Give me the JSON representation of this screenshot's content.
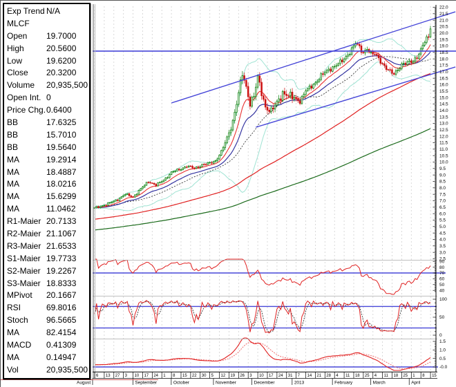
{
  "data_window": {
    "rows": [
      {
        "label": "Exp Trend",
        "value": "N/A"
      },
      {
        "label": "MLCF",
        "value": ""
      },
      {
        "label": "Open",
        "value": "19.7000"
      },
      {
        "label": "High",
        "value": "20.5600"
      },
      {
        "label": "Low",
        "value": "19.6200"
      },
      {
        "label": "Close",
        "value": "20.3200"
      },
      {
        "label": "Volume",
        "value": "20,935,500"
      },
      {
        "label": "Open Int.",
        "value": "0"
      },
      {
        "label": "Price Chg.",
        "value": "0.6400"
      },
      {
        "label": "BB",
        "value": "17.6325"
      },
      {
        "label": "BB",
        "value": "15.7010"
      },
      {
        "label": "BB",
        "value": "19.5640"
      },
      {
        "label": "MA",
        "value": "19.2914"
      },
      {
        "label": "MA",
        "value": "18.4887"
      },
      {
        "label": "MA",
        "value": "18.0216"
      },
      {
        "label": "MA",
        "value": "15.6299"
      },
      {
        "label": "MA",
        "value": "11.0462"
      },
      {
        "label": "R1-Maier",
        "value": "20.7133"
      },
      {
        "label": "R2-Maier",
        "value": "21.1067"
      },
      {
        "label": "R3-Maier",
        "value": "21.6533"
      },
      {
        "label": "S1-Maier",
        "value": "19.7733"
      },
      {
        "label": "S2-Maier",
        "value": "19.2267"
      },
      {
        "label": "S3-Maier",
        "value": "18.8333"
      },
      {
        "label": "MPivot",
        "value": "20.1667"
      },
      {
        "label": "RSI",
        "value": "69.8016"
      },
      {
        "label": "Stoch",
        "value": "96.5665"
      },
      {
        "label": "MA",
        "value": "82.4154"
      },
      {
        "label": "MACD",
        "value": "0.41309"
      },
      {
        "label": "MA",
        "value": "0.14947"
      },
      {
        "label": "Vol",
        "value": "20,935,500"
      }
    ]
  },
  "chart_data": {
    "type": "candlestick",
    "symbol": "MLCF",
    "last_candle": {
      "open": 19.7,
      "high": 20.56,
      "low": 19.62,
      "close": 20.32
    },
    "price_axis": {
      "max": 22.0,
      "min": 2.5,
      "step": 0.5
    },
    "close_anchors": [
      [
        0,
        6.45
      ],
      [
        6,
        6.7
      ],
      [
        12,
        7.1
      ],
      [
        16,
        7.5
      ],
      [
        20,
        7.3
      ],
      [
        24,
        7.9
      ],
      [
        28,
        8.5
      ],
      [
        32,
        8.2
      ],
      [
        36,
        8.6
      ],
      [
        40,
        9.2
      ],
      [
        44,
        9.4
      ],
      [
        48,
        9.7
      ],
      [
        52,
        9.5
      ],
      [
        56,
        9.8
      ],
      [
        60,
        9.9
      ],
      [
        63,
        10.1
      ],
      [
        66,
        10.8
      ],
      [
        69,
        11.8
      ],
      [
        72,
        13.2
      ],
      [
        75,
        15.3
      ],
      [
        77,
        16.8
      ],
      [
        79,
        15.8
      ],
      [
        81,
        14.6
      ],
      [
        83,
        15.1
      ],
      [
        85,
        16.5
      ],
      [
        87,
        15.4
      ],
      [
        89,
        14.3
      ],
      [
        92,
        13.9
      ],
      [
        95,
        14.6
      ],
      [
        98,
        15.4
      ],
      [
        101,
        15.1
      ],
      [
        104,
        15.0
      ],
      [
        107,
        14.7
      ],
      [
        110,
        15.5
      ],
      [
        113,
        15.9
      ],
      [
        116,
        16.3
      ],
      [
        119,
        16.8
      ],
      [
        122,
        17.2
      ],
      [
        125,
        17.4
      ],
      [
        128,
        17.7
      ],
      [
        131,
        18.2
      ],
      [
        134,
        18.7
      ],
      [
        136,
        19.2
      ],
      [
        138,
        18.9
      ],
      [
        140,
        18.5
      ],
      [
        142,
        18.8
      ],
      [
        144,
        18.3
      ],
      [
        146,
        18.4
      ],
      [
        148,
        18.1
      ],
      [
        150,
        17.6
      ],
      [
        152,
        17.2
      ],
      [
        154,
        17.0
      ],
      [
        156,
        16.9
      ],
      [
        158,
        17.2
      ],
      [
        160,
        17.5
      ],
      [
        162,
        17.6
      ],
      [
        164,
        17.8
      ],
      [
        166,
        17.9
      ],
      [
        168,
        18.1
      ],
      [
        170,
        18.6
      ],
      [
        171,
        19.0
      ],
      [
        172,
        19.3
      ],
      [
        173,
        19.7
      ],
      [
        174,
        19.68
      ],
      [
        175,
        20.32
      ]
    ],
    "days_total": 176,
    "week_labels": [
      "6",
      "13",
      "27",
      "3",
      "10",
      "17",
      "24",
      "1",
      "8",
      "15",
      "22",
      "30",
      "5",
      "12",
      "19",
      "26",
      "3",
      "10",
      "17",
      "24",
      "31",
      "7",
      "14",
      "21",
      "28",
      "4",
      "11",
      "18",
      "25",
      "4",
      "11",
      "18",
      "25",
      "1",
      "8",
      "15"
    ],
    "months": [
      {
        "label": "August",
        "day": 0
      },
      {
        "label": "September",
        "day": 21
      },
      {
        "label": "October",
        "day": 41
      },
      {
        "label": "November",
        "day": 63
      },
      {
        "label": "December",
        "day": 83
      },
      {
        "label": "2013",
        "day": 104
      },
      {
        "label": "February",
        "day": 125
      },
      {
        "label": "March",
        "day": 145
      },
      {
        "label": "April",
        "day": 165
      }
    ],
    "resistance_level": 18.6,
    "trend_channel": {
      "upper": {
        "from_day": 40,
        "from_price": 14.58,
        "to_day": 188,
        "to_price": 21.65
      },
      "lower": {
        "from_day": 84,
        "from_price": 12.7,
        "to_day": 188,
        "to_price": 17.37
      }
    },
    "indicators": {
      "rsi": {
        "axis_labels": [
          90,
          80,
          70,
          60,
          50,
          40
        ],
        "hline": 70,
        "last": 69.8016
      },
      "stoch": {
        "axis_labels": [
          100,
          50
        ],
        "hlines": [
          80,
          20
        ],
        "last": 96.5665,
        "signal_last": 82.4154
      },
      "macd": {
        "axis_labels": [
          "1.5",
          "1.0",
          "0.5",
          "0.0"
        ],
        "hline": 0.0,
        "last": 0.41309,
        "signal_last": 0.14947
      }
    },
    "moving_averages": [
      19.2914,
      18.4887,
      18.0216,
      15.6299,
      11.0462
    ],
    "bollinger": {
      "mid": 17.6325,
      "lower": 15.701,
      "upper": 19.564
    }
  },
  "colors": {
    "up_candle": "#007a00",
    "down_candle": "#cc1111",
    "bollinger": "#9fe3d3",
    "ma_fast": "#e83030",
    "ma_mid": "#3333a0",
    "ma_dotted": "#222222",
    "ma_slow": "#e02020",
    "ma_long": "#1c6b1c",
    "blue_line": "#4646d8",
    "grid": "#cfcfcf",
    "rsi": "#e02020",
    "stoch_k": "#e02020",
    "stoch_d": "#333333",
    "macd": "#e02020",
    "macd_signal": "#ee7070",
    "axis": "#000000",
    "separator": "#aaaaaa",
    "bottom_red": "#cc5555"
  }
}
